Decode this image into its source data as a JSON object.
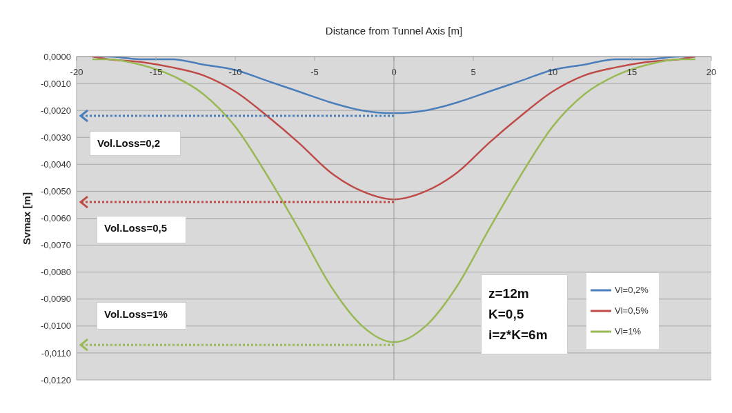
{
  "chart_data": {
    "type": "line",
    "xlabel": "Distance from Tunnel Axis [m]",
    "ylabel": "Svmax [m]",
    "x": [
      -19,
      -18,
      -16,
      -14,
      -12,
      -10,
      -8,
      -6,
      -4,
      -2,
      0,
      2,
      4,
      6,
      8,
      10,
      12,
      14,
      16,
      18,
      19
    ],
    "series": [
      {
        "name": "Vl=0,2%",
        "color": "#4a7ebb",
        "values": [
          0,
          0,
          -0.0001,
          -0.0001,
          -0.0003,
          -0.0005,
          -0.0009,
          -0.0013,
          -0.0017,
          -0.002,
          -0.0021,
          -0.002,
          -0.0017,
          -0.0013,
          -0.0009,
          -0.0005,
          -0.0003,
          -0.0001,
          -0.0001,
          0,
          0
        ]
      },
      {
        "name": "Vl=0,5%",
        "color": "#be4b48",
        "values": [
          0,
          -0.0001,
          -0.0002,
          -0.0004,
          -0.0007,
          -0.0013,
          -0.0022,
          -0.0032,
          -0.0043,
          -0.005,
          -0.0053,
          -0.005,
          -0.0043,
          -0.0032,
          -0.0022,
          -0.0013,
          -0.0007,
          -0.0004,
          -0.0002,
          -0.0001,
          0
        ]
      },
      {
        "name": "Vl=1%",
        "color": "#98b954",
        "values": [
          -0.0001,
          -0.0001,
          -0.0003,
          -0.0007,
          -0.0014,
          -0.0026,
          -0.0044,
          -0.0064,
          -0.0085,
          -0.01,
          -0.0106,
          -0.01,
          -0.0085,
          -0.0064,
          -0.0044,
          -0.0026,
          -0.0014,
          -0.0007,
          -0.0003,
          -0.0001,
          -0.0001
        ]
      }
    ],
    "xlim": [
      -20,
      20
    ],
    "xticks": [
      -20,
      -15,
      -10,
      -5,
      0,
      5,
      10,
      15,
      20
    ],
    "ylim": [
      -0.012,
      0
    ],
    "yticks": [
      {
        "value": 0,
        "label": "0,0000"
      },
      {
        "value": -0.001,
        "label": "-0,0010"
      },
      {
        "value": -0.002,
        "label": "-0,0020"
      },
      {
        "value": -0.003,
        "label": "-0,0030"
      },
      {
        "value": -0.004,
        "label": "-0,0040"
      },
      {
        "value": -0.005,
        "label": "-0,0050"
      },
      {
        "value": -0.006,
        "label": "-0,0060"
      },
      {
        "value": -0.007,
        "label": "-0,0070"
      },
      {
        "value": -0.008,
        "label": "-0,0080"
      },
      {
        "value": -0.009,
        "label": "-0,0090"
      },
      {
        "value": -0.01,
        "label": "-0,0100"
      },
      {
        "value": -0.011,
        "label": "-0,0110"
      },
      {
        "value": -0.012,
        "label": "-0,0120"
      }
    ],
    "ref_lines": [
      {
        "axis": "x",
        "value": 0,
        "color": "#999999",
        "line_style": "solid"
      },
      {
        "axis": "y",
        "value": -0.0022,
        "color": "#4a7ebb",
        "line_style": "dotted"
      },
      {
        "axis": "y",
        "value": -0.0054,
        "color": "#be4b48",
        "line_style": "dotted"
      },
      {
        "axis": "y",
        "value": -0.0107,
        "color": "#98b954",
        "line_style": "dotted"
      }
    ],
    "annotations": [
      "Vol.Loss=0,2",
      "Vol.Loss=0,5",
      "Vol.Loss=1%",
      "z=12m\nK=0,5\ni=z*K=6m"
    ],
    "grid": "y",
    "legend": "bottom right",
    "marker": "none",
    "line_style": "solid"
  }
}
